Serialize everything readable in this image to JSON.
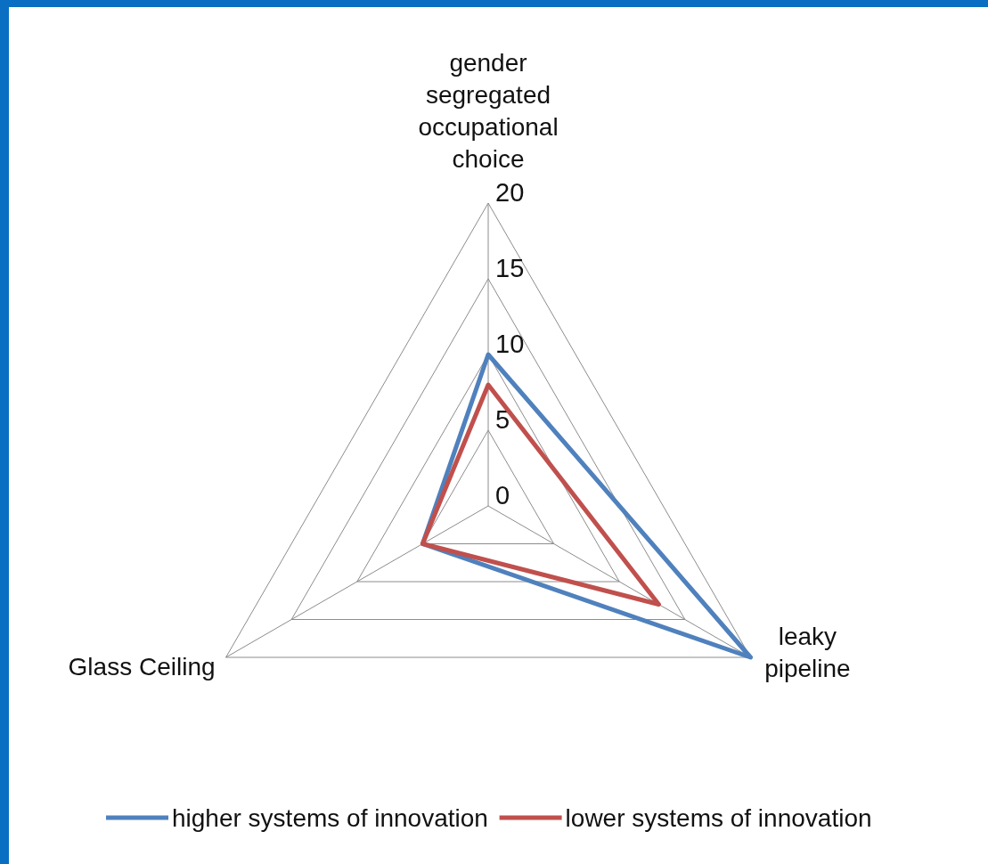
{
  "chart_data": {
    "type": "radar",
    "categories": [
      "gender segregated occupational choice",
      "leaky pipeline",
      "Glass Ceiling"
    ],
    "series": [
      {
        "name": "higher systems of innovation",
        "color": "#4f81bd",
        "values": [
          10,
          20,
          5
        ]
      },
      {
        "name": "lower systems of innovation",
        "color": "#c0504d",
        "values": [
          8,
          13,
          5
        ]
      }
    ],
    "ylim": [
      0,
      20
    ],
    "yticks": [
      0,
      5,
      10,
      15,
      20
    ],
    "grid": true,
    "legend": "bottom",
    "marker": "none"
  }
}
